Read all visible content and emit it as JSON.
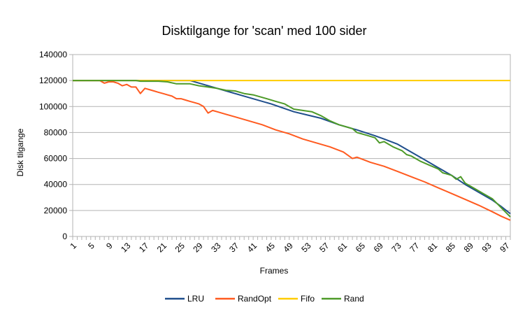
{
  "chart_data": {
    "type": "line",
    "title": "Disktilgange for 'scan' med 100 sider",
    "xlabel": "Frames",
    "ylabel": "Disk tilgange",
    "xlim": [
      1,
      98
    ],
    "ylim": [
      0,
      140000
    ],
    "ytick_labels": [
      "0",
      "20000",
      "40000",
      "60000",
      "80000",
      "100000",
      "120000",
      "140000"
    ],
    "xtick_labels": [
      "1",
      "5",
      "9",
      "13",
      "17",
      "21",
      "25",
      "29",
      "33",
      "37",
      "41",
      "45",
      "49",
      "53",
      "57",
      "61",
      "65",
      "69",
      "73",
      "77",
      "81",
      "85",
      "89",
      "93",
      "97"
    ],
    "grid": true,
    "legend_position": "bottom",
    "series": [
      {
        "name": "LRU",
        "color": "#1f4e8c",
        "points": [
          [
            1,
            120000
          ],
          [
            27,
            120000
          ],
          [
            30,
            117000
          ],
          [
            35,
            112000
          ],
          [
            40,
            107000
          ],
          [
            45,
            102000
          ],
          [
            50,
            96000
          ],
          [
            53,
            93500
          ],
          [
            56,
            91000
          ],
          [
            60,
            86000
          ],
          [
            64,
            82000
          ],
          [
            68,
            77500
          ],
          [
            70,
            75000
          ],
          [
            73,
            71000
          ],
          [
            76,
            65000
          ],
          [
            79,
            59000
          ],
          [
            82,
            53000
          ],
          [
            85,
            47000
          ],
          [
            88,
            40000
          ],
          [
            91,
            34000
          ],
          [
            94,
            28000
          ],
          [
            96,
            23000
          ],
          [
            98,
            17500
          ]
        ]
      },
      {
        "name": "RandOpt",
        "color": "#ff5a1f",
        "points": [
          [
            1,
            120000
          ],
          [
            7,
            120000
          ],
          [
            8,
            118000
          ],
          [
            9,
            119000
          ],
          [
            10,
            119000
          ],
          [
            11,
            118000
          ],
          [
            12,
            116000
          ],
          [
            13,
            117000
          ],
          [
            14,
            115000
          ],
          [
            15,
            115000
          ],
          [
            16,
            110000
          ],
          [
            17,
            114000
          ],
          [
            18,
            113000
          ],
          [
            19,
            112000
          ],
          [
            20,
            111000
          ],
          [
            21,
            110000
          ],
          [
            22,
            109000
          ],
          [
            23,
            108000
          ],
          [
            24,
            106000
          ],
          [
            25,
            106000
          ],
          [
            26,
            105000
          ],
          [
            27,
            104000
          ],
          [
            28,
            103000
          ],
          [
            29,
            102000
          ],
          [
            30,
            100000
          ],
          [
            31,
            95000
          ],
          [
            32,
            97000
          ],
          [
            33,
            96000
          ],
          [
            35,
            94000
          ],
          [
            37,
            92000
          ],
          [
            40,
            89000
          ],
          [
            43,
            86000
          ],
          [
            46,
            82000
          ],
          [
            49,
            79000
          ],
          [
            52,
            75000
          ],
          [
            55,
            72000
          ],
          [
            58,
            69000
          ],
          [
            61,
            65000
          ],
          [
            63,
            60000
          ],
          [
            64,
            61000
          ],
          [
            67,
            57000
          ],
          [
            70,
            54000
          ],
          [
            73,
            50000
          ],
          [
            76,
            46000
          ],
          [
            79,
            42000
          ],
          [
            82,
            37500
          ],
          [
            85,
            33000
          ],
          [
            88,
            28500
          ],
          [
            91,
            24000
          ],
          [
            94,
            19000
          ],
          [
            96,
            15500
          ],
          [
            98,
            12500
          ]
        ]
      },
      {
        "name": "Fifo",
        "color": "#ffcc00",
        "points": [
          [
            1,
            120000
          ],
          [
            98,
            120000
          ]
        ]
      },
      {
        "name": "Rand",
        "color": "#4d9a28",
        "points": [
          [
            1,
            120000
          ],
          [
            15,
            120000
          ],
          [
            16,
            119500
          ],
          [
            20,
            119500
          ],
          [
            22,
            119000
          ],
          [
            24,
            117500
          ],
          [
            27,
            117500
          ],
          [
            29,
            116000
          ],
          [
            31,
            115000
          ],
          [
            33,
            114000
          ],
          [
            35,
            112500
          ],
          [
            37,
            112000
          ],
          [
            39,
            110000
          ],
          [
            41,
            109000
          ],
          [
            44,
            106000
          ],
          [
            46,
            104000
          ],
          [
            48,
            102000
          ],
          [
            50,
            98000
          ],
          [
            52,
            97000
          ],
          [
            54,
            96000
          ],
          [
            56,
            93000
          ],
          [
            58,
            89000
          ],
          [
            60,
            86000
          ],
          [
            62,
            84000
          ],
          [
            63,
            83000
          ],
          [
            64,
            80000
          ],
          [
            66,
            78000
          ],
          [
            68,
            76000
          ],
          [
            69,
            72000
          ],
          [
            70,
            73000
          ],
          [
            72,
            69000
          ],
          [
            74,
            66000
          ],
          [
            75,
            63000
          ],
          [
            76,
            62000
          ],
          [
            78,
            58000
          ],
          [
            80,
            55000
          ],
          [
            82,
            52000
          ],
          [
            83,
            49000
          ],
          [
            85,
            47000
          ],
          [
            86,
            44000
          ],
          [
            87,
            46000
          ],
          [
            88,
            41000
          ],
          [
            90,
            37000
          ],
          [
            92,
            33000
          ],
          [
            94,
            29000
          ],
          [
            96,
            22000
          ],
          [
            98,
            15000
          ]
        ]
      }
    ]
  }
}
